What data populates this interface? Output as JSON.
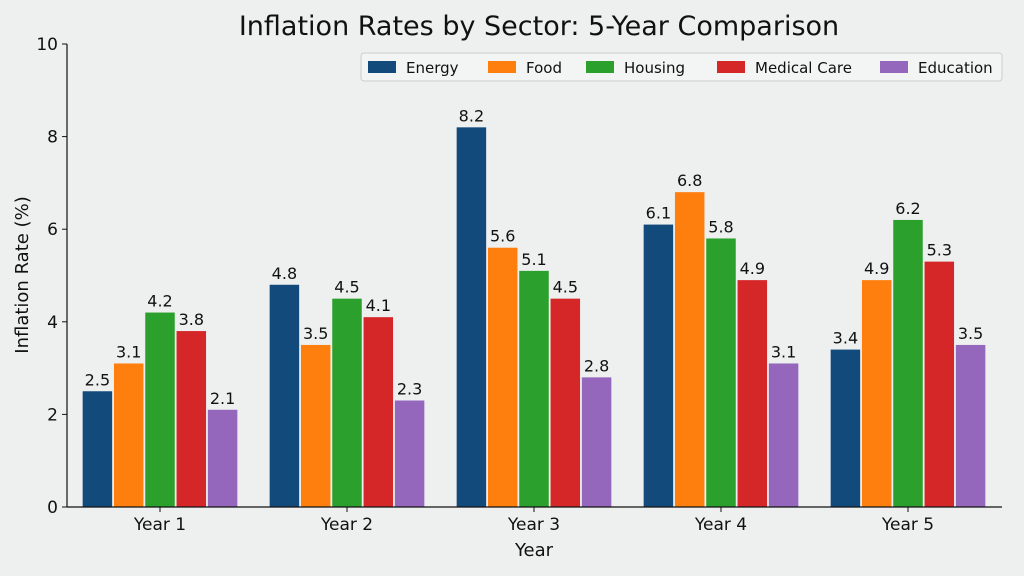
{
  "chart_data": {
    "type": "bar",
    "title": "Inflation Rates by Sector: 5-Year Comparison",
    "xlabel": "Year",
    "ylabel": "Inflation Rate (%)",
    "ylim": [
      0,
      10
    ],
    "yticks": [
      "0",
      "2",
      "4",
      "6",
      "8",
      "10"
    ],
    "categories": [
      "Year 1",
      "Year 2",
      "Year 3",
      "Year 4",
      "Year 5"
    ],
    "grid": false,
    "legend_position": "top-right",
    "series": [
      {
        "name": "Energy",
        "color": "#134a7c",
        "values": [
          2.5,
          4.8,
          8.2,
          6.1,
          3.4
        ]
      },
      {
        "name": "Food",
        "color": "#ff7f0e",
        "values": [
          3.1,
          3.5,
          5.6,
          6.8,
          4.9
        ]
      },
      {
        "name": "Housing",
        "color": "#2ca02c",
        "values": [
          4.2,
          4.5,
          5.1,
          5.8,
          6.2
        ]
      },
      {
        "name": "Medical Care",
        "color": "#d62728",
        "values": [
          3.8,
          4.1,
          4.5,
          4.9,
          5.3
        ]
      },
      {
        "name": "Education",
        "color": "#9467bd",
        "values": [
          2.1,
          2.3,
          2.8,
          3.1,
          3.5
        ]
      }
    ]
  }
}
